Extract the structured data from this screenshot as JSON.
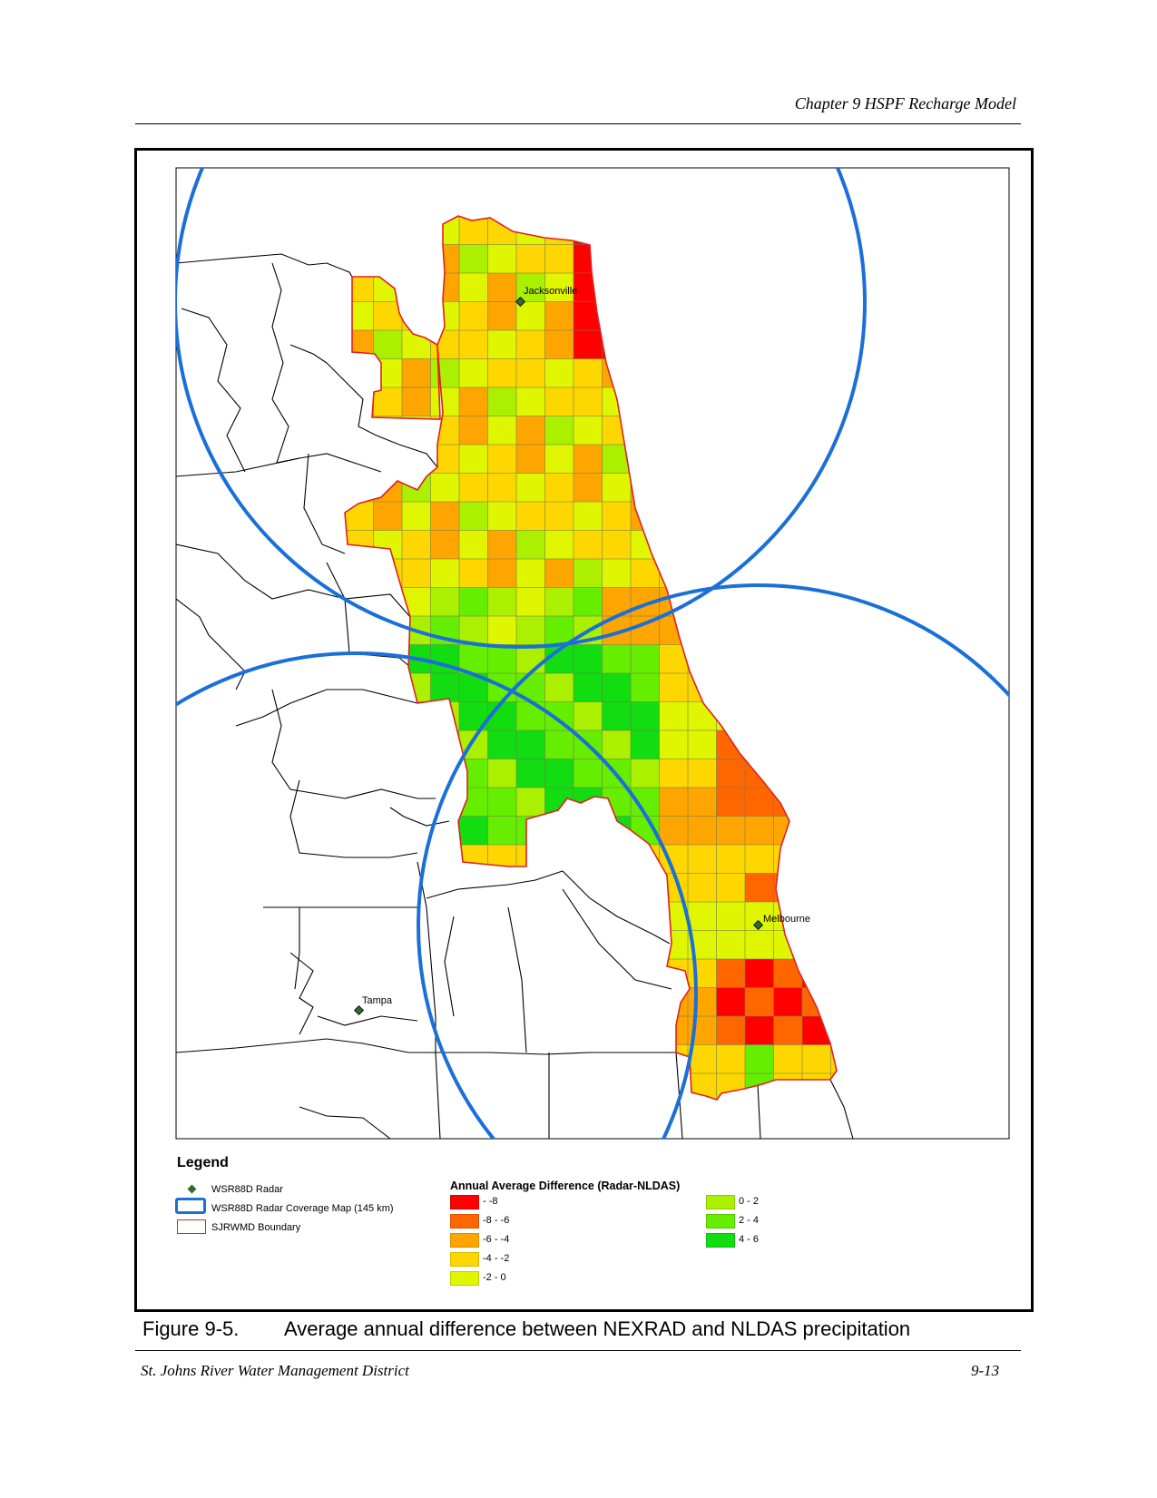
{
  "header": {
    "running_head": "Chapter 9 HSPF Recharge Model"
  },
  "map": {
    "cities": [
      {
        "name": "Jacksonville"
      },
      {
        "name": "Melbourne"
      },
      {
        "name": "Tampa"
      }
    ],
    "colors": {
      "radar_circle": "#1a6fd8",
      "boundary": "#e02020",
      "counties": "#000000"
    }
  },
  "legend": {
    "title": "Legend",
    "symbols": [
      {
        "label": "WSR88D Radar",
        "icon": "radar-diamond-icon"
      },
      {
        "label": "WSR88D Radar Coverage Map (145 km)",
        "icon": "coverage-circle-icon"
      },
      {
        "label": "SJRWMD Boundary",
        "icon": "boundary-box-icon"
      }
    ],
    "ramp_title": "Annual Average Difference (Radar-NLDAS)",
    "classes": [
      {
        "label": "- -8",
        "color": "#ff0000"
      },
      {
        "label": "-8 - -6",
        "color": "#ff6600"
      },
      {
        "label": "-6 - -4",
        "color": "#ffa500"
      },
      {
        "label": "-4 - -2",
        "color": "#ffd700"
      },
      {
        "label": "-2 - 0",
        "color": "#e0f500"
      },
      {
        "label": "0 - 2",
        "color": "#aaf000"
      },
      {
        "label": "2 - 4",
        "color": "#66ee00"
      },
      {
        "label": "4 - 6",
        "color": "#11dd11"
      }
    ]
  },
  "caption": {
    "number": "Figure 9-5.",
    "text": "Average annual difference between NEXRAD and NLDAS precipitation"
  },
  "footer": {
    "left": "St. Johns River Water Management District",
    "right": "9-13"
  }
}
